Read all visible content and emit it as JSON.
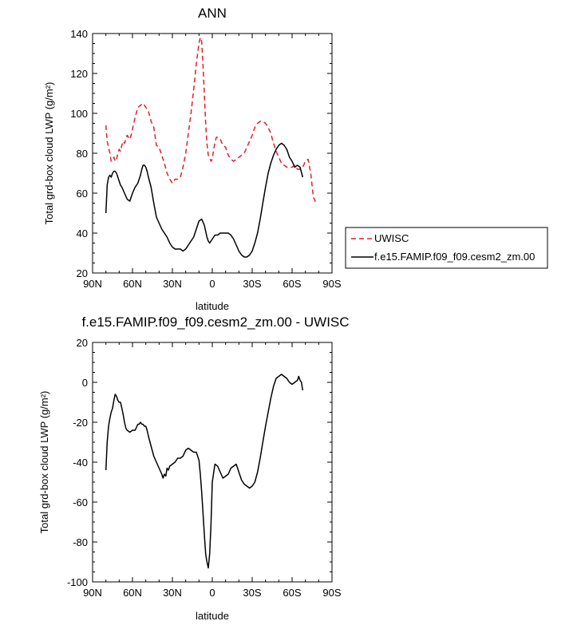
{
  "chart_data": [
    {
      "type": "line",
      "title": "ANN",
      "xlabel": "latitude",
      "ylabel": "Total grd-box cloud LWP (g/m²)",
      "xlim": [
        90,
        -90
      ],
      "ylim": [
        20,
        140
      ],
      "xticks": [
        90,
        60,
        30,
        0,
        -30,
        -60,
        -90
      ],
      "xtick_labels": [
        "90N",
        "60N",
        "30N",
        "0",
        "30S",
        "60S",
        "90S"
      ],
      "yticks": [
        20,
        40,
        60,
        80,
        100,
        120,
        140
      ],
      "ytick_labels": [
        "20",
        "40",
        "60",
        "80",
        "100",
        "120",
        "140"
      ],
      "legend": "outside-right",
      "series": [
        {
          "name": "UWISC",
          "color": "#e0202a",
          "dash": "dashed",
          "x": [
            80,
            79,
            78,
            77,
            76,
            75,
            74,
            73,
            72,
            71,
            70,
            69,
            68,
            67,
            66,
            65,
            64,
            63,
            62,
            61,
            60,
            58,
            56,
            54,
            52,
            50,
            48,
            46,
            44,
            42,
            40,
            38,
            36,
            34,
            32,
            30,
            28,
            26,
            24,
            22,
            20,
            18,
            16,
            14,
            12,
            10,
            9,
            8,
            7,
            6,
            5,
            4,
            3,
            2,
            1,
            0,
            -1,
            -2,
            -3,
            -4,
            -6,
            -8,
            -10,
            -12,
            -14,
            -16,
            -18,
            -20,
            -22,
            -24,
            -26,
            -28,
            -30,
            -32,
            -34,
            -36,
            -38,
            -40,
            -42,
            -44,
            -46,
            -48,
            -50,
            -52,
            -54,
            -56,
            -58,
            -60,
            -62,
            -64,
            -66,
            -68,
            -70,
            -72,
            -74,
            -76,
            -78
          ],
          "y": [
            94,
            86,
            83,
            80,
            76,
            77,
            78,
            76,
            77,
            80,
            82,
            81,
            84,
            86,
            85,
            87,
            89,
            88,
            87,
            89,
            92,
            98,
            103,
            104,
            105,
            103,
            101,
            96,
            93,
            84,
            83,
            79,
            75,
            70,
            67,
            65,
            67,
            67,
            68,
            73,
            80,
            90,
            100,
            112,
            125,
            135,
            138,
            136,
            125,
            110,
            95,
            85,
            79,
            78,
            76,
            77,
            82,
            85,
            88,
            88,
            87,
            84,
            83,
            79,
            77,
            76,
            77,
            78,
            79,
            80,
            83,
            86,
            89,
            93,
            95,
            96,
            96,
            95,
            93,
            90,
            85,
            81,
            78,
            75,
            74,
            73,
            73,
            73,
            74,
            72,
            72,
            73,
            76,
            77,
            70,
            58,
            55
          ]
        },
        {
          "name": "f.e15.FAMIP.f09_f09.cesm2_zm.00",
          "color": "#000000",
          "dash": "solid",
          "x": [
            80,
            79,
            78,
            77,
            76,
            75,
            74,
            73,
            72,
            71,
            70,
            69,
            68,
            66,
            64,
            62,
            60,
            58,
            56,
            54,
            53,
            52,
            51,
            50,
            49,
            48,
            46,
            44,
            42,
            40,
            38,
            36,
            34,
            32,
            30,
            28,
            26,
            24,
            22,
            20,
            18,
            16,
            14,
            12,
            10,
            8,
            6,
            4,
            3,
            2,
            1,
            0,
            -2,
            -4,
            -6,
            -8,
            -10,
            -12,
            -14,
            -16,
            -18,
            -20,
            -22,
            -24,
            -26,
            -28,
            -30,
            -32,
            -34,
            -36,
            -38,
            -40,
            -42,
            -44,
            -46,
            -48,
            -50,
            -52,
            -54,
            -56,
            -58,
            -60,
            -62,
            -64,
            -66,
            -68
          ],
          "y": [
            50,
            64,
            68,
            69,
            68,
            70,
            71,
            71,
            70,
            68,
            66,
            64,
            63,
            60,
            57,
            56,
            60,
            63,
            65,
            69,
            72,
            74,
            74,
            73,
            71,
            68,
            63,
            55,
            48,
            45,
            42,
            40,
            38,
            35,
            33,
            32,
            32,
            32,
            31,
            32,
            34,
            36,
            38,
            42,
            46,
            47,
            44,
            38,
            36,
            35,
            36,
            37,
            39,
            39,
            40,
            40,
            40,
            40,
            39,
            37,
            34,
            31,
            29,
            28,
            28,
            29,
            31,
            35,
            40,
            47,
            55,
            63,
            70,
            75,
            79,
            82,
            84,
            85,
            84,
            82,
            78,
            76,
            73,
            74,
            73,
            68
          ]
        }
      ]
    },
    {
      "type": "line",
      "title": "f.e15.FAMIP.f09_f09.cesm2_zm.00 - UWISC",
      "xlabel": "latitude",
      "ylabel": "Total grd-box cloud LWP (g/m²)",
      "xlim": [
        90,
        -90
      ],
      "ylim": [
        -100,
        20
      ],
      "xticks": [
        90,
        60,
        30,
        0,
        -30,
        -60,
        -90
      ],
      "xtick_labels": [
        "90N",
        "60N",
        "30N",
        "0",
        "30S",
        "60S",
        "90S"
      ],
      "yticks": [
        -100,
        -80,
        -60,
        -40,
        -20,
        0,
        20
      ],
      "ytick_labels": [
        "-100",
        "-80",
        "-60",
        "-40",
        "-20",
        "0",
        "20"
      ],
      "series": [
        {
          "color": "#000000",
          "dash": "solid",
          "x": [
            80,
            79,
            78,
            77,
            76,
            75,
            74,
            73,
            72,
            71,
            70,
            69,
            68,
            67,
            66,
            65,
            64,
            62,
            60,
            58,
            56,
            55,
            54,
            53,
            52,
            51,
            50,
            49,
            48,
            46,
            44,
            42,
            40,
            38,
            37,
            36,
            35,
            34,
            33,
            32,
            30,
            28,
            26,
            24,
            22,
            20,
            18,
            16,
            14,
            12,
            10,
            9,
            8,
            7,
            6,
            5,
            4,
            3,
            2,
            1,
            0,
            -2,
            -4,
            -6,
            -8,
            -10,
            -12,
            -14,
            -16,
            -18,
            -20,
            -22,
            -24,
            -26,
            -28,
            -30,
            -32,
            -34,
            -36,
            -38,
            -40,
            -42,
            -44,
            -46,
            -48,
            -50,
            -52,
            -54,
            -56,
            -58,
            -60,
            -62,
            -64,
            -65,
            -66,
            -67,
            -68
          ],
          "y": [
            -44,
            -30,
            -22,
            -18,
            -15,
            -13,
            -9,
            -6,
            -7,
            -9,
            -10,
            -10,
            -13,
            -16,
            -20,
            -23,
            -24,
            -25,
            -24,
            -24,
            -21,
            -21,
            -20,
            -21,
            -21,
            -22,
            -22,
            -24,
            -27,
            -32,
            -37,
            -40,
            -43,
            -46,
            -48,
            -46,
            -47,
            -43,
            -44,
            -42,
            -41,
            -40,
            -38,
            -38,
            -37,
            -34,
            -33,
            -34,
            -35,
            -35,
            -39,
            -46,
            -55,
            -65,
            -76,
            -86,
            -90,
            -93,
            -86,
            -72,
            -50,
            -41,
            -42,
            -45,
            -48,
            -47,
            -46,
            -43,
            -42,
            -41,
            -45,
            -49,
            -51,
            -52,
            -53,
            -52,
            -50,
            -45,
            -38,
            -30,
            -22,
            -15,
            -8,
            -2,
            2,
            3,
            4,
            3,
            2,
            0,
            -1,
            0,
            1,
            3,
            1,
            0,
            -4
          ]
        }
      ]
    }
  ]
}
